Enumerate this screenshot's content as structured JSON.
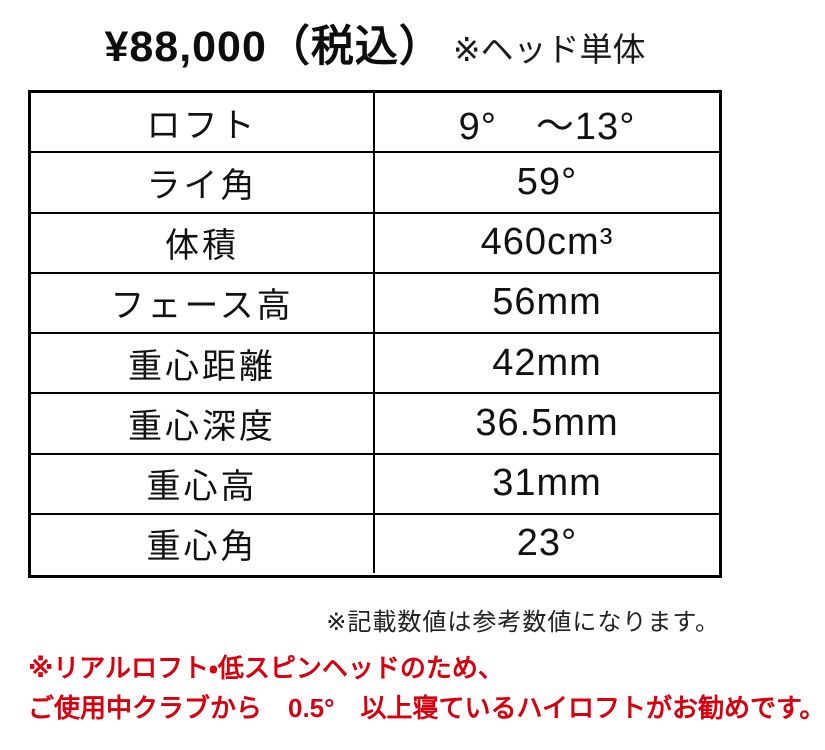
{
  "title": {
    "price": "¥88,000（税込）",
    "note": "※ヘッド単体"
  },
  "spec_table": {
    "rows": [
      {
        "label": "ロフト",
        "value": "9°　～13°"
      },
      {
        "label": "ライ角",
        "value": "59°"
      },
      {
        "label": "体積",
        "value": "460cm³"
      },
      {
        "label": "フェース高",
        "value": "56mm"
      },
      {
        "label": "重心距離",
        "value": "42mm"
      },
      {
        "label": "重心深度",
        "value": "36.5mm"
      },
      {
        "label": "重心高",
        "value": "31mm"
      },
      {
        "label": "重心角",
        "value": "23°"
      }
    ]
  },
  "footnote": "※記載数値は参考数値になります。",
  "warning": {
    "line1": "※リアルロフト・低スピンヘッドのため、",
    "line2": "ご使用中クラブから　0.5°　以上寝ているハイロフトがお勧めです。"
  },
  "colors": {
    "warning_red": "#d7000f",
    "text": "#000000",
    "border": "#000000"
  }
}
